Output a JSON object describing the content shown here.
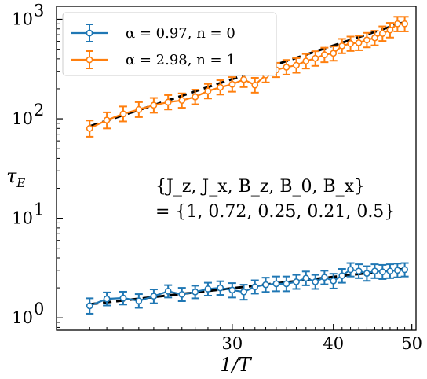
{
  "chart_data": {
    "type": "line",
    "xlabel": "1/T",
    "ylabel": "τ_E",
    "ylabel_text": "τ",
    "ylabel_sub": "E",
    "xscale": "log",
    "yscale": "log",
    "xlim": [
      18.2,
      50.6
    ],
    "ylim": [
      0.75,
      1350
    ],
    "x_ticks": [
      30,
      40,
      50
    ],
    "x_tick_labels": [
      "30",
      "40",
      "50"
    ],
    "y_ticks": [
      1,
      10,
      100,
      1000
    ],
    "y_tick_labels": [
      {
        "base": "10",
        "exp": "0"
      },
      {
        "base": "10",
        "exp": "1"
      },
      {
        "base": "10",
        "exp": "2"
      },
      {
        "base": "10",
        "exp": "3"
      }
    ],
    "grid": false,
    "legend_position": "top-left",
    "x": [
      20.0,
      21.0,
      22.0,
      23.0,
      24.0,
      25.0,
      26.0,
      27.0,
      28.0,
      29.0,
      30.0,
      31.0,
      32.0,
      33.0,
      34.0,
      35.0,
      36.0,
      37.0,
      38.0,
      39.0,
      40.0,
      41.0,
      42.0,
      43.0,
      44.0,
      45.0,
      46.0,
      47.0,
      48.0,
      49.0
    ],
    "series": [
      {
        "name": "α = 0.97, n = 0",
        "color": "#1f77b4",
        "values": [
          1.32,
          1.55,
          1.58,
          1.48,
          1.65,
          1.85,
          1.72,
          1.82,
          1.95,
          2.0,
          1.9,
          1.82,
          2.05,
          2.15,
          2.2,
          2.2,
          2.3,
          2.5,
          2.3,
          2.55,
          2.35,
          2.65,
          3.05,
          2.95,
          2.8,
          2.95,
          2.9,
          2.95,
          3.0,
          3.05
        ],
        "err_low": [
          0.22,
          0.22,
          0.22,
          0.22,
          0.25,
          0.25,
          0.25,
          0.25,
          0.28,
          0.3,
          0.3,
          0.3,
          0.3,
          0.33,
          0.35,
          0.35,
          0.35,
          0.38,
          0.35,
          0.38,
          0.38,
          0.4,
          0.45,
          0.45,
          0.45,
          0.45,
          0.45,
          0.45,
          0.45,
          0.45
        ],
        "err_high": [
          0.25,
          0.25,
          0.25,
          0.25,
          0.28,
          0.28,
          0.28,
          0.28,
          0.3,
          0.33,
          0.33,
          0.33,
          0.33,
          0.38,
          0.4,
          0.4,
          0.4,
          0.42,
          0.4,
          0.42,
          0.42,
          0.45,
          0.5,
          0.5,
          0.5,
          0.5,
          0.5,
          0.5,
          0.5,
          0.5
        ],
        "fit": {
          "x": [
            20,
            49
          ],
          "y": [
            1.37,
            3.1
          ]
        }
      },
      {
        "name": "α = 2.98, n = 1",
        "color": "#ff7f0e",
        "values": [
          80,
          97,
          112,
          124,
          137,
          147,
          153,
          166,
          190,
          207,
          222,
          248,
          218,
          275,
          310,
          330,
          345,
          380,
          405,
          440,
          455,
          540,
          570,
          580,
          620,
          650,
          720,
          780,
          900,
          900
        ],
        "err_low": [
          14,
          17,
          18,
          20,
          22,
          23,
          24,
          26,
          30,
          32,
          35,
          40,
          35,
          43,
          48,
          52,
          55,
          60,
          65,
          70,
          72,
          85,
          90,
          92,
          98,
          103,
          115,
          125,
          145,
          145
        ],
        "err_high": [
          16,
          19,
          21,
          23,
          25,
          26,
          27,
          30,
          34,
          37,
          40,
          45,
          40,
          48,
          55,
          60,
          62,
          68,
          72,
          78,
          80,
          95,
          100,
          103,
          110,
          116,
          128,
          140,
          160,
          160
        ],
        "fit": {
          "x": [
            20,
            49
          ],
          "y": [
            84,
            940
          ]
        }
      }
    ]
  },
  "legend": {
    "items": [
      {
        "alpha": "α = 0.97",
        "n": "n = 0"
      },
      {
        "alpha": "α = 2.98",
        "n": "n = 1"
      }
    ]
  },
  "annotation": {
    "line1": "{J_z, J_x, B_z, B_0, B_x}",
    "line2": "= {1, 0.72, 0.25, 0.21, 0.5}"
  }
}
